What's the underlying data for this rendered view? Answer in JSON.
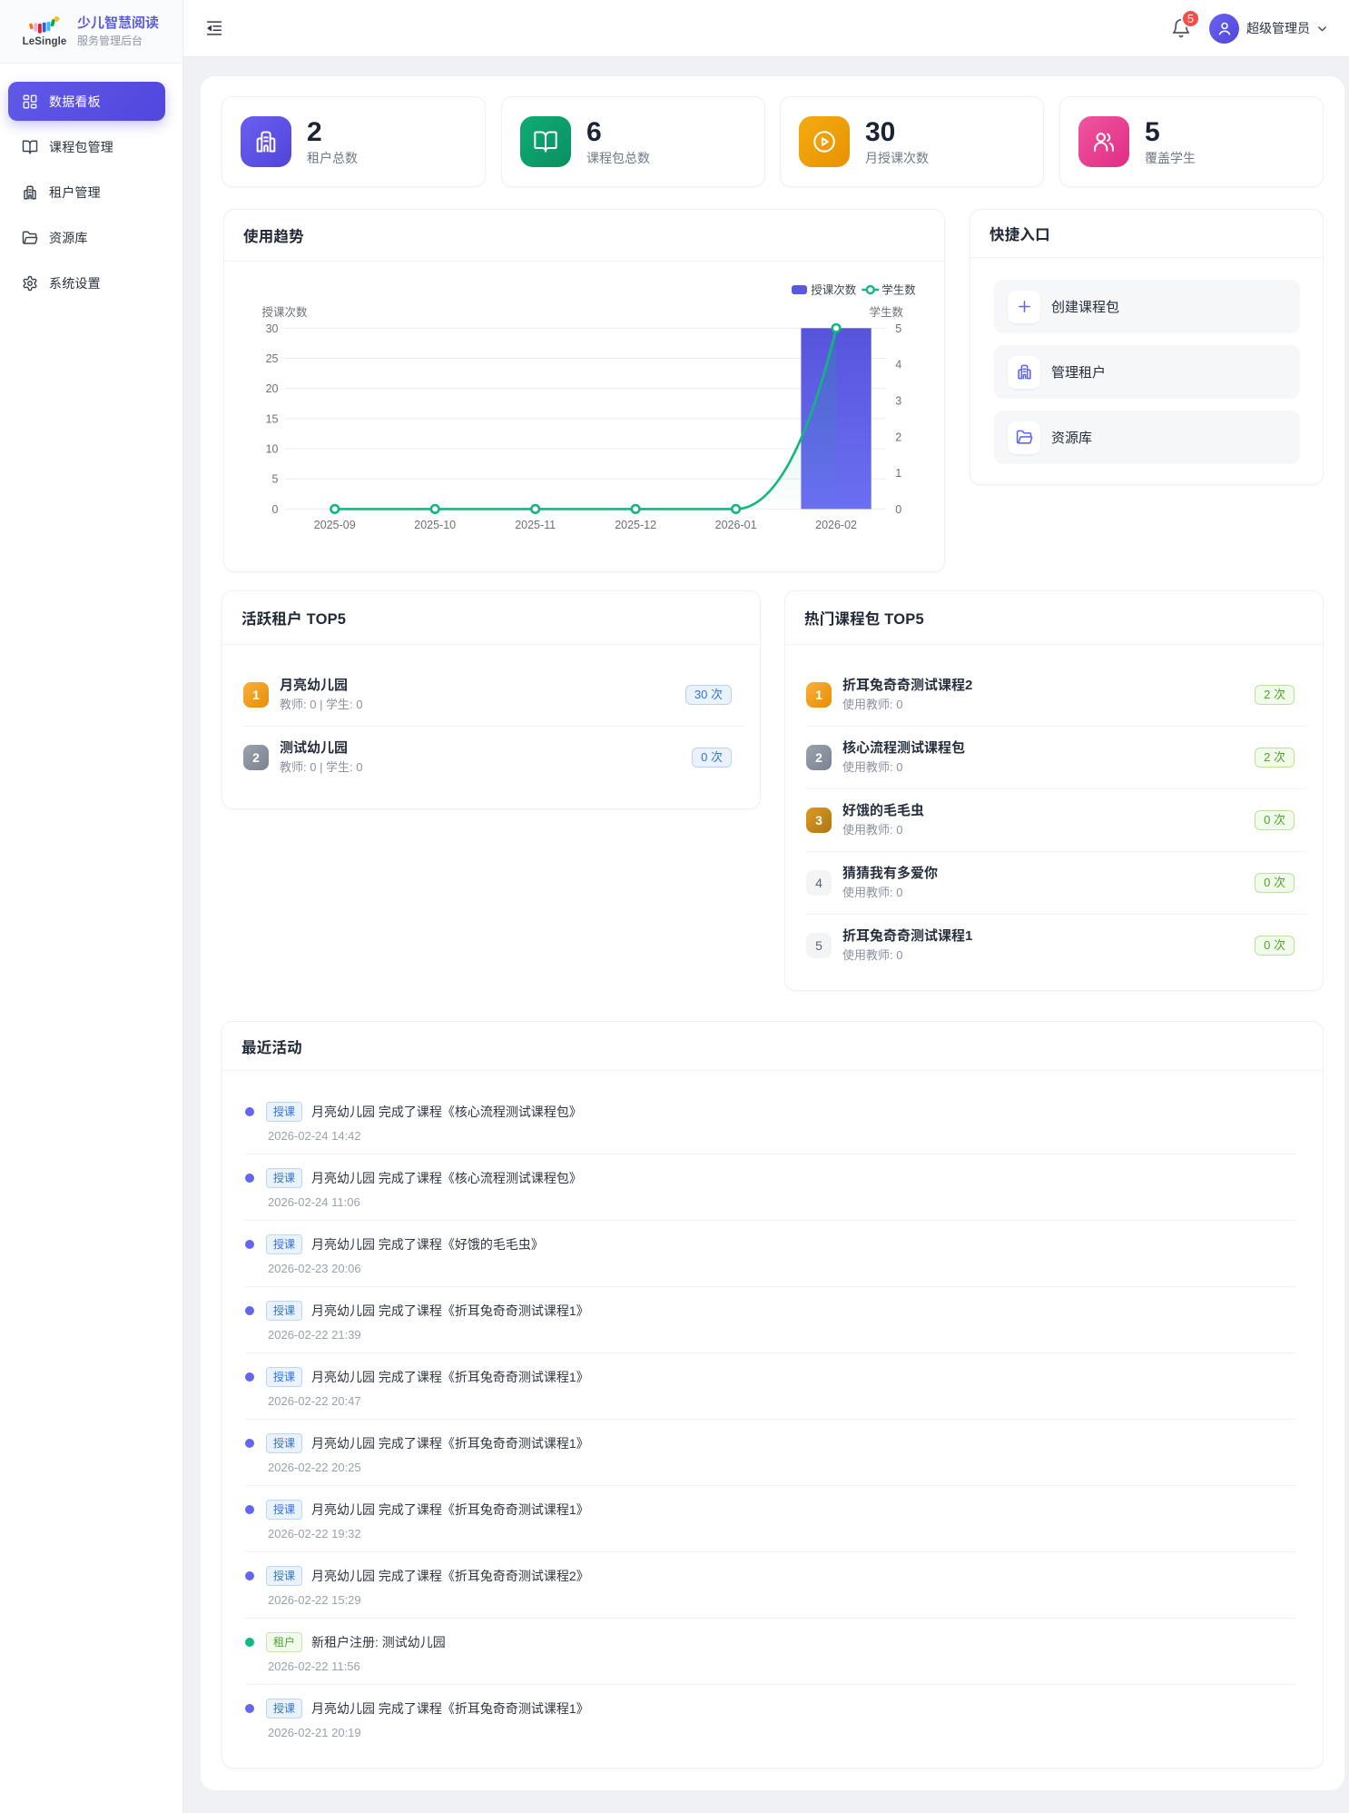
{
  "brand": {
    "logo_text": "LeSingle",
    "title": "少儿智慧阅读",
    "subtitle": "服务管理后台"
  },
  "sidebar": {
    "items": [
      {
        "label": "数据看板",
        "icon": "dashboard-icon",
        "active": true
      },
      {
        "label": "课程包管理",
        "icon": "book-icon",
        "active": false
      },
      {
        "label": "租户管理",
        "icon": "building-icon",
        "active": false
      },
      {
        "label": "资源库",
        "icon": "folder-icon",
        "active": false
      },
      {
        "label": "系统设置",
        "icon": "gear-icon",
        "active": false
      }
    ]
  },
  "header": {
    "notification_count": "5",
    "user_name": "超级管理员"
  },
  "stats": [
    {
      "value": "2",
      "label": "租户总数",
      "icon": "building-icon",
      "color": "#5b51e3"
    },
    {
      "value": "6",
      "label": "课程包总数",
      "icon": "book-icon",
      "color": "#0ba572"
    },
    {
      "value": "30",
      "label": "月授课次数",
      "icon": "play-icon",
      "color": "#f0a00e"
    },
    {
      "value": "5",
      "label": "覆盖学生",
      "icon": "users-icon",
      "color": "#ec4596"
    }
  ],
  "trend": {
    "title": "使用趋势"
  },
  "chart_data": {
    "type": "bar+line",
    "categories": [
      "2025-09",
      "2025-10",
      "2025-11",
      "2025-12",
      "2026-01",
      "2026-02"
    ],
    "series": [
      {
        "name": "授课次数",
        "type": "bar",
        "axis": "left",
        "values": [
          0,
          0,
          0,
          0,
          0,
          30
        ],
        "color": "#5a57e0"
      },
      {
        "name": "学生数",
        "type": "line",
        "axis": "right",
        "values": [
          0,
          0,
          0,
          0,
          0,
          5
        ],
        "color": "#12b77e"
      }
    ],
    "left_axis": {
      "name": "授课次数",
      "min": 0,
      "max": 30,
      "ticks": [
        0,
        5,
        10,
        15,
        20,
        25,
        30
      ]
    },
    "right_axis": {
      "name": "学生数",
      "min": 0,
      "max": 5,
      "ticks": [
        0,
        1,
        2,
        3,
        4,
        5
      ]
    },
    "legend_position": "top-right",
    "grid": true
  },
  "quick": {
    "title": "快捷入口",
    "items": [
      {
        "label": "创建课程包",
        "icon": "plus-icon"
      },
      {
        "label": "管理租户",
        "icon": "building-icon"
      },
      {
        "label": "资源库",
        "icon": "folder-icon"
      }
    ]
  },
  "top_tenants": {
    "title": "活跃租户 TOP5",
    "items": [
      {
        "rank": "1",
        "name": "月亮幼儿园",
        "meta": "教师: 0 | 学生: 0",
        "count": "30 次"
      },
      {
        "rank": "2",
        "name": "测试幼儿园",
        "meta": "教师: 0 | 学生: 0",
        "count": "0 次"
      }
    ]
  },
  "top_packages": {
    "title": "热门课程包 TOP5",
    "items": [
      {
        "rank": "1",
        "name": "折耳兔奇奇测试课程2",
        "meta": "使用教师: 0",
        "count": "2 次"
      },
      {
        "rank": "2",
        "name": "核心流程测试课程包",
        "meta": "使用教师: 0",
        "count": "2 次"
      },
      {
        "rank": "3",
        "name": "好饿的毛毛虫",
        "meta": "使用教师: 0",
        "count": "0 次"
      },
      {
        "rank": "4",
        "name": "猜猜我有多爱你",
        "meta": "使用教师: 0",
        "count": "0 次"
      },
      {
        "rank": "5",
        "name": "折耳兔奇奇测试课程1",
        "meta": "使用教师: 0",
        "count": "0 次"
      }
    ]
  },
  "activities": {
    "title": "最近活动",
    "items": [
      {
        "tag": "授课",
        "type": "teach",
        "text": "月亮幼儿园 完成了课程《核心流程测试课程包》",
        "time": "2026-02-24 14:42"
      },
      {
        "tag": "授课",
        "type": "teach",
        "text": "月亮幼儿园 完成了课程《核心流程测试课程包》",
        "time": "2026-02-24 11:06"
      },
      {
        "tag": "授课",
        "type": "teach",
        "text": "月亮幼儿园 完成了课程《好饿的毛毛虫》",
        "time": "2026-02-23 20:06"
      },
      {
        "tag": "授课",
        "type": "teach",
        "text": "月亮幼儿园 完成了课程《折耳兔奇奇测试课程1》",
        "time": "2026-02-22 21:39"
      },
      {
        "tag": "授课",
        "type": "teach",
        "text": "月亮幼儿园 完成了课程《折耳兔奇奇测试课程1》",
        "time": "2026-02-22 20:47"
      },
      {
        "tag": "授课",
        "type": "teach",
        "text": "月亮幼儿园 完成了课程《折耳兔奇奇测试课程1》",
        "time": "2026-02-22 20:25"
      },
      {
        "tag": "授课",
        "type": "teach",
        "text": "月亮幼儿园 完成了课程《折耳兔奇奇测试课程1》",
        "time": "2026-02-22 19:32"
      },
      {
        "tag": "授课",
        "type": "teach",
        "text": "月亮幼儿园 完成了课程《折耳兔奇奇测试课程2》",
        "time": "2026-02-22 15:29"
      },
      {
        "tag": "租户",
        "type": "tenant",
        "text": "新租户注册: 测试幼儿园",
        "time": "2026-02-22 11:56"
      },
      {
        "tag": "授课",
        "type": "teach",
        "text": "月亮幼儿园 完成了课程《折耳兔奇奇测试课程1》",
        "time": "2026-02-21 20:19"
      }
    ]
  }
}
